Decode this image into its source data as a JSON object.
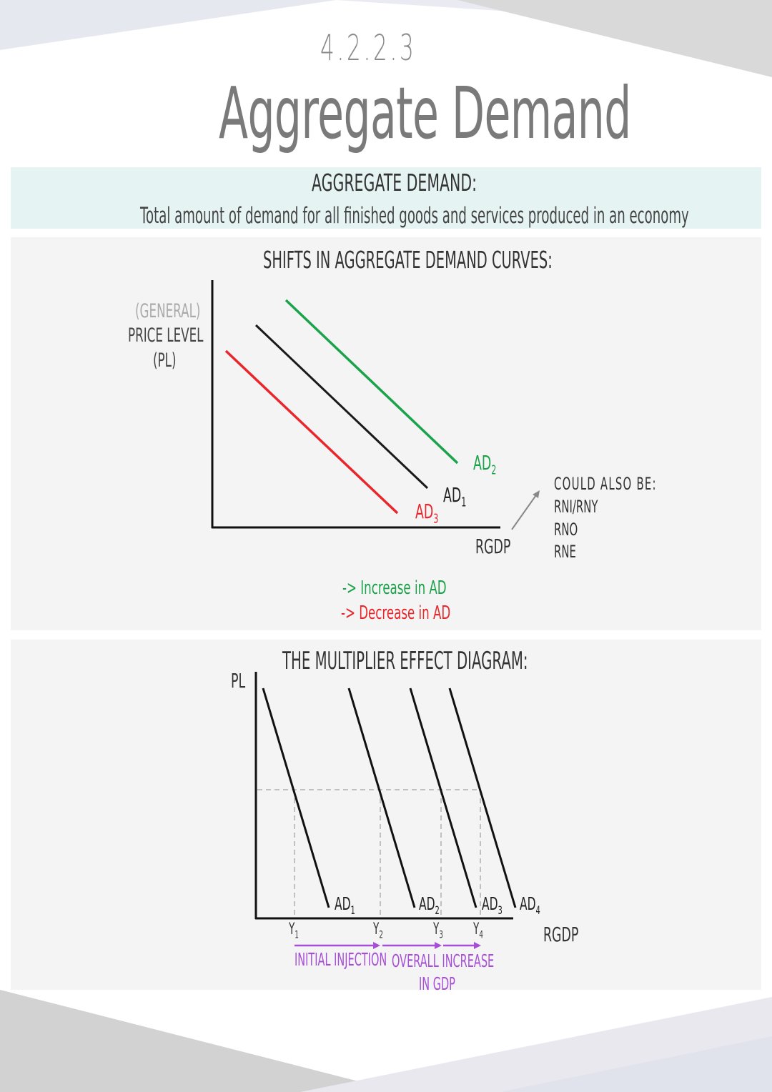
{
  "header": {
    "section_number": "4.2.2.3",
    "title": "Aggregate Demand"
  },
  "definition": {
    "heading": "AGGREGATE DEMAND:",
    "text": "Total amount of demand for all finished goods and services produced in an economy"
  },
  "shifts_diagram": {
    "title": "SHIFTS IN AGGREGATE DEMAND CURVES:",
    "y_axis_label_line1": "(GENERAL)",
    "y_axis_label_line2": "PRICE LEVEL",
    "y_axis_label_line3": "(PL)",
    "x_axis_label": "RGDP",
    "curves": [
      {
        "label": "AD",
        "subscript": "1",
        "color": "#1a1a1a"
      },
      {
        "label": "AD",
        "subscript": "2",
        "color": "#1aa34a"
      },
      {
        "label": "AD",
        "subscript": "3",
        "color": "#e8262b"
      }
    ],
    "note_heading": "COULD ALSO BE:",
    "note_items": [
      "RNI/RNY",
      "RNO",
      "RNE"
    ],
    "legend_increase": "-> Increase in AD",
    "legend_decrease": "-> Decrease in AD",
    "increase_color": "#1aa34a",
    "decrease_color": "#e8262b"
  },
  "multiplier_diagram": {
    "title": "THE MULTIPLIER EFFECT DIAGRAM:",
    "y_axis_label": "PL",
    "x_axis_label": "RGDP",
    "curves": [
      {
        "label": "AD",
        "subscript": "1"
      },
      {
        "label": "AD",
        "subscript": "2"
      },
      {
        "label": "AD",
        "subscript": "3"
      },
      {
        "label": "AD",
        "subscript": "4"
      }
    ],
    "outputs": [
      {
        "label": "Y",
        "subscript": "1"
      },
      {
        "label": "Y",
        "subscript": "2"
      },
      {
        "label": "Y",
        "subscript": "3"
      },
      {
        "label": "Y",
        "subscript": "4"
      }
    ],
    "initial_injection": "INITIAL INJECTION",
    "overall_increase_line1": "OVERALL INCREASE",
    "overall_increase_line2": "IN GDP",
    "accent_color": "#a64fd6"
  }
}
